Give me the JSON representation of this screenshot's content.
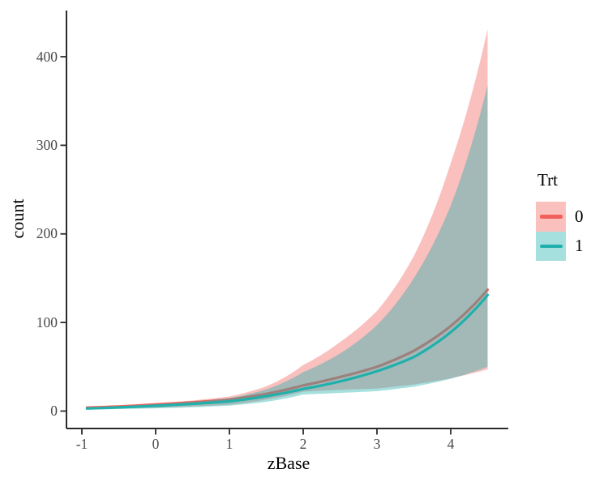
{
  "chart_data": {
    "type": "line",
    "title": "",
    "xlabel": "zBase",
    "ylabel": "count",
    "legend_title": "Trt",
    "legend_position": "right",
    "xlim": [
      -1.2,
      4.8
    ],
    "ylim": [
      0,
      450
    ],
    "grid": false,
    "fill_opacity": 0.4,
    "x_ticks": [
      {
        "label": "-1",
        "value": -1
      },
      {
        "label": "0",
        "value": 0
      },
      {
        "label": "1",
        "value": 1
      },
      {
        "label": "2",
        "value": 2
      },
      {
        "label": "3",
        "value": 3
      },
      {
        "label": "4",
        "value": 4
      }
    ],
    "y_ticks": [
      {
        "label": "0",
        "value": 0
      },
      {
        "label": "100",
        "value": 100
      },
      {
        "label": "200",
        "value": 200
      },
      {
        "label": "300",
        "value": 300
      },
      {
        "label": "400",
        "value": 400
      }
    ],
    "x": [
      -0.93,
      -0.5,
      0,
      0.5,
      1,
      1.5,
      2,
      2.5,
      3,
      3.5,
      4,
      4.5
    ],
    "series": [
      {
        "name": "0",
        "color": "#F2615C",
        "fill": "#F2615C",
        "line": [
          3.9,
          5.2,
          7.5,
          9.9,
          13,
          19.5,
          29,
          38.5,
          50,
          68,
          96,
          137
        ],
        "upper": [
          5.2,
          6.5,
          9.0,
          12.0,
          16.5,
          28,
          52,
          78,
          113,
          175,
          280,
          431
        ],
        "lower": [
          2.5,
          3.0,
          3.8,
          5.2,
          7.2,
          13,
          22,
          24,
          25.5,
          30,
          37,
          47
        ]
      },
      {
        "name": "1",
        "color": "#1FB0AC",
        "fill": "#1FB0AC",
        "line": [
          2.9,
          4.2,
          6.0,
          8.2,
          11,
          16.8,
          25,
          33.5,
          45,
          61,
          89,
          131
        ],
        "upper": [
          4.4,
          5.6,
          7.8,
          10.5,
          14.6,
          24.5,
          44,
          65,
          97,
          150,
          232,
          368
        ],
        "lower": [
          1.8,
          2.3,
          3.1,
          4.3,
          6.2,
          10.5,
          18.7,
          20.5,
          22.5,
          27.5,
          36.5,
          50
        ]
      }
    ],
    "axis_color": "#2b2b2b",
    "tick_label_color": "#4a4a4a"
  }
}
